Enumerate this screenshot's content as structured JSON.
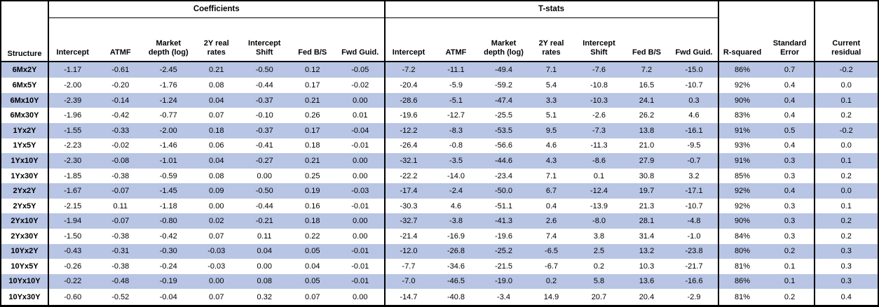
{
  "colors": {
    "row_stripe": "#B8C5E4",
    "border": "#000000",
    "background": "#FFFFFF"
  },
  "chart_data": {
    "type": "table",
    "row_header_label": "Structure",
    "group_headers": {
      "coefficients": "Coefficients",
      "tstats": "T-stats"
    },
    "coef_columns": [
      "Intercept",
      "ATMF",
      "Market\ndepth (log)",
      "2Y real\nrates",
      "Intercept\nShift",
      "Fed B/S",
      "Fwd Guid."
    ],
    "tstat_columns": [
      "Intercept",
      "ATMF",
      "Market\ndepth (log)",
      "2Y real\nrates",
      "Intercept\nShift",
      "Fed B/S",
      "Fwd Guid."
    ],
    "summary_columns": [
      "R-squared",
      "Standard\nError",
      "Current\nresidual"
    ],
    "rows": [
      {
        "structure": "6Mx2Y",
        "coefficients": [
          "-1.17",
          "-0.61",
          "-2.45",
          "0.21",
          "-0.50",
          "0.12",
          "-0.05"
        ],
        "tstats": [
          "-7.2",
          "-11.1",
          "-49.4",
          "7.1",
          "-7.6",
          "7.2",
          "-15.0"
        ],
        "r_squared": "86%",
        "standard_error": "0.7",
        "current_residual": "-0.2"
      },
      {
        "structure": "6Mx5Y",
        "coefficients": [
          "-2.00",
          "-0.20",
          "-1.76",
          "0.08",
          "-0.44",
          "0.17",
          "-0.02"
        ],
        "tstats": [
          "-20.4",
          "-5.9",
          "-59.2",
          "5.4",
          "-10.8",
          "16.5",
          "-10.7"
        ],
        "r_squared": "92%",
        "standard_error": "0.4",
        "current_residual": "0.0"
      },
      {
        "structure": "6Mx10Y",
        "coefficients": [
          "-2.39",
          "-0.14",
          "-1.24",
          "0.04",
          "-0.37",
          "0.21",
          "0.00"
        ],
        "tstats": [
          "-28.6",
          "-5.1",
          "-47.4",
          "3.3",
          "-10.3",
          "24.1",
          "0.3"
        ],
        "r_squared": "90%",
        "standard_error": "0.4",
        "current_residual": "0.1"
      },
      {
        "structure": "6Mx30Y",
        "coefficients": [
          "-1.96",
          "-0.42",
          "-0.77",
          "0.07",
          "-0.10",
          "0.26",
          "0.01"
        ],
        "tstats": [
          "-19.6",
          "-12.7",
          "-25.5",
          "5.1",
          "-2.6",
          "26.2",
          "4.6"
        ],
        "r_squared": "83%",
        "standard_error": "0.4",
        "current_residual": "0.2"
      },
      {
        "structure": "1Yx2Y",
        "coefficients": [
          "-1.55",
          "-0.33",
          "-2.00",
          "0.18",
          "-0.37",
          "0.17",
          "-0.04"
        ],
        "tstats": [
          "-12.2",
          "-8.3",
          "-53.5",
          "9.5",
          "-7.3",
          "13.8",
          "-16.1"
        ],
        "r_squared": "91%",
        "standard_error": "0.5",
        "current_residual": "-0.2"
      },
      {
        "structure": "1Yx5Y",
        "coefficients": [
          "-2.23",
          "-0.02",
          "-1.46",
          "0.06",
          "-0.41",
          "0.18",
          "-0.01"
        ],
        "tstats": [
          "-26.4",
          "-0.8",
          "-56.6",
          "4.6",
          "-11.3",
          "21.0",
          "-9.5"
        ],
        "r_squared": "93%",
        "standard_error": "0.4",
        "current_residual": "0.0"
      },
      {
        "structure": "1Yx10Y",
        "coefficients": [
          "-2.30",
          "-0.08",
          "-1.01",
          "0.04",
          "-0.27",
          "0.21",
          "0.00"
        ],
        "tstats": [
          "-32.1",
          "-3.5",
          "-44.6",
          "4.3",
          "-8.6",
          "27.9",
          "-0.7"
        ],
        "r_squared": "91%",
        "standard_error": "0.3",
        "current_residual": "0.1"
      },
      {
        "structure": "1Yx30Y",
        "coefficients": [
          "-1.85",
          "-0.38",
          "-0.59",
          "0.08",
          "0.00",
          "0.25",
          "0.00"
        ],
        "tstats": [
          "-22.2",
          "-14.0",
          "-23.4",
          "7.1",
          "0.1",
          "30.8",
          "3.2"
        ],
        "r_squared": "85%",
        "standard_error": "0.3",
        "current_residual": "0.2"
      },
      {
        "structure": "2Yx2Y",
        "coefficients": [
          "-1.67",
          "-0.07",
          "-1.45",
          "0.09",
          "-0.50",
          "0.19",
          "-0.03"
        ],
        "tstats": [
          "-17.4",
          "-2.4",
          "-50.0",
          "6.7",
          "-12.4",
          "19.7",
          "-17.1"
        ],
        "r_squared": "92%",
        "standard_error": "0.4",
        "current_residual": "0.0"
      },
      {
        "structure": "2Yx5Y",
        "coefficients": [
          "-2.15",
          "0.11",
          "-1.18",
          "0.00",
          "-0.44",
          "0.16",
          "-0.01"
        ],
        "tstats": [
          "-30.3",
          "4.6",
          "-51.1",
          "0.4",
          "-13.9",
          "21.3",
          "-10.7"
        ],
        "r_squared": "92%",
        "standard_error": "0.3",
        "current_residual": "0.1"
      },
      {
        "structure": "2Yx10Y",
        "coefficients": [
          "-1.94",
          "-0.07",
          "-0.80",
          "0.02",
          "-0.21",
          "0.18",
          "0.00"
        ],
        "tstats": [
          "-32.7",
          "-3.8",
          "-41.3",
          "2.6",
          "-8.0",
          "28.1",
          "-4.8"
        ],
        "r_squared": "90%",
        "standard_error": "0.3",
        "current_residual": "0.2"
      },
      {
        "structure": "2Yx30Y",
        "coefficients": [
          "-1.50",
          "-0.38",
          "-0.42",
          "0.07",
          "0.11",
          "0.22",
          "0.00"
        ],
        "tstats": [
          "-21.4",
          "-16.9",
          "-19.6",
          "7.4",
          "3.8",
          "31.4",
          "-1.0"
        ],
        "r_squared": "84%",
        "standard_error": "0.3",
        "current_residual": "0.2"
      },
      {
        "structure": "10Yx2Y",
        "coefficients": [
          "-0.43",
          "-0.31",
          "-0.30",
          "-0.03",
          "0.04",
          "0.05",
          "-0.01"
        ],
        "tstats": [
          "-12.0",
          "-26.8",
          "-25.2",
          "-6.5",
          "2.5",
          "13.2",
          "-23.8"
        ],
        "r_squared": "80%",
        "standard_error": "0.2",
        "current_residual": "0.3"
      },
      {
        "structure": "10Yx5Y",
        "coefficients": [
          "-0.26",
          "-0.38",
          "-0.24",
          "-0.03",
          "0.00",
          "0.04",
          "-0.01"
        ],
        "tstats": [
          "-7.7",
          "-34.6",
          "-21.5",
          "-6.7",
          "0.2",
          "10.3",
          "-21.7"
        ],
        "r_squared": "81%",
        "standard_error": "0.1",
        "current_residual": "0.3"
      },
      {
        "structure": "10Yx10Y",
        "coefficients": [
          "-0.22",
          "-0.48",
          "-0.19",
          "0.00",
          "0.08",
          "0.05",
          "-0.01"
        ],
        "tstats": [
          "-7.0",
          "-46.5",
          "-19.0",
          "0.2",
          "5.8",
          "13.6",
          "-16.6"
        ],
        "r_squared": "86%",
        "standard_error": "0.1",
        "current_residual": "0.3"
      },
      {
        "structure": "10Yx30Y",
        "coefficients": [
          "-0.60",
          "-0.52",
          "-0.04",
          "0.07",
          "0.32",
          "0.07",
          "0.00"
        ],
        "tstats": [
          "-14.7",
          "-40.8",
          "-3.4",
          "14.9",
          "20.7",
          "20.4",
          "-2.9"
        ],
        "r_squared": "81%",
        "standard_error": "0.2",
        "current_residual": "0.4"
      }
    ]
  }
}
